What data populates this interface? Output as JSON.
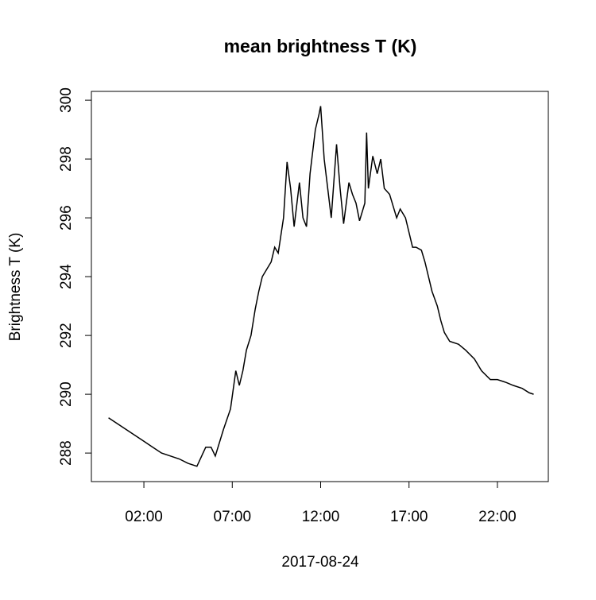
{
  "chart_data": {
    "type": "line",
    "title": "mean brightness T (K)",
    "x_label": "2017-08-24",
    "y_label": "Brightness T (K)",
    "x": [
      0,
      0.5,
      1,
      1.5,
      2,
      2.5,
      3,
      3.5,
      4,
      4.5,
      5,
      5.5,
      5.8,
      6.04,
      6.5,
      6.9,
      7.2,
      7.4,
      7.6,
      7.8,
      8.06,
      8.3,
      8.5,
      8.7,
      9.0,
      9.2,
      9.4,
      9.6,
      9.9,
      10.1,
      10.3,
      10.5,
      10.8,
      11.0,
      11.2,
      11.4,
      11.7,
      11.9,
      12.0,
      12.2,
      12.4,
      12.6,
      12.9,
      13.1,
      13.3,
      13.6,
      13.8,
      14.0,
      14.2,
      14.5,
      14.6,
      14.7,
      14.95,
      15.2,
      15.4,
      15.6,
      15.9,
      16.1,
      16.3,
      16.5,
      16.8,
      17.0,
      17.2,
      17.4,
      17.7,
      17.9,
      18.1,
      18.3,
      18.6,
      18.8,
      19.0,
      19.3,
      19.8,
      20.2,
      20.7,
      21.1,
      21.6,
      22.0,
      22.5,
      22.9,
      23.4,
      23.8,
      24.05
    ],
    "series": [
      {
        "color": "#000000",
        "values": [
          289.2,
          289.0,
          288.8,
          288.6,
          288.4,
          288.2,
          288.0,
          287.9,
          287.8,
          287.65,
          287.55,
          288.2,
          288.2,
          287.9,
          288.8,
          289.5,
          290.8,
          290.3,
          290.8,
          291.5,
          292.0,
          292.9,
          293.5,
          294.0,
          294.3,
          294.5,
          295.0,
          294.8,
          296.0,
          297.9,
          297.0,
          295.7,
          297.2,
          296.0,
          295.7,
          297.5,
          299.0,
          299.5,
          299.8,
          298.0,
          297.0,
          296.0,
          298.5,
          297.0,
          295.8,
          297.2,
          296.8,
          296.5,
          295.9,
          296.5,
          298.9,
          297.0,
          298.1,
          297.5,
          298.0,
          297.0,
          296.8,
          296.4,
          296.0,
          296.3,
          296.0,
          295.5,
          295.0,
          295.0,
          294.9,
          294.5,
          294.0,
          293.5,
          293.0,
          292.5,
          292.1,
          291.8,
          291.7,
          291.5,
          291.2,
          290.8,
          290.5,
          290.5,
          290.4,
          290.3,
          290.2,
          290.05,
          290.0
        ]
      }
    ],
    "xlim": [
      -0.97,
      24.88
    ],
    "ylim": [
      287.03,
      300.3
    ],
    "xticks": [
      {
        "value": 2,
        "label": "02:00"
      },
      {
        "value": 7,
        "label": "07:00"
      },
      {
        "value": 12,
        "label": "12:00"
      },
      {
        "value": 17,
        "label": "17:00"
      },
      {
        "value": 22,
        "label": "22:00"
      }
    ],
    "yticks": [
      288,
      290,
      292,
      294,
      296,
      298,
      300
    ]
  }
}
